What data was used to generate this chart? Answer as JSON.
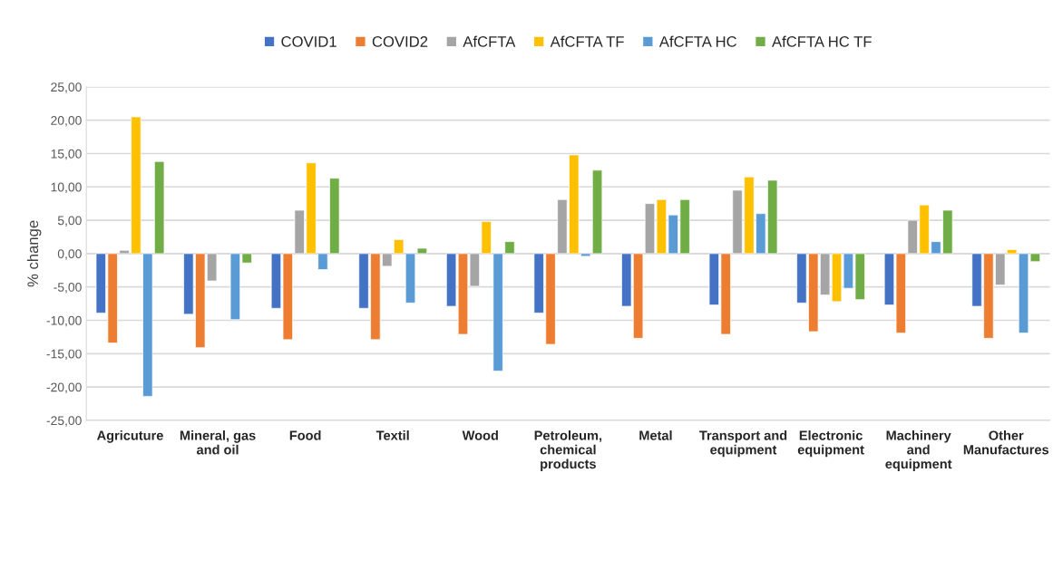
{
  "chart_data": {
    "type": "bar",
    "ylabel": "% change",
    "categories": [
      "Agricuture",
      "Mineral, gas\nand oil",
      "Food",
      "Textil",
      "Wood",
      "Petroleum,\nchemical\nproducts",
      "Metal",
      "Transport and\nequipment",
      "Electronic\nequipment",
      "Machinery\nand\nequipment",
      "Other\nManufactures"
    ],
    "series": [
      {
        "name": "COVID1",
        "color": "#4472c4",
        "values": [
          -8.9,
          -9.1,
          -8.2,
          -8.2,
          -7.9,
          -8.9,
          -7.9,
          -7.7,
          -7.4,
          -7.7,
          -7.9
        ]
      },
      {
        "name": "COVID2",
        "color": "#ed7d31",
        "values": [
          -13.4,
          -14.1,
          -12.9,
          -12.9,
          -12.1,
          -13.6,
          -12.7,
          -12.1,
          -11.7,
          -11.9,
          -12.7
        ]
      },
      {
        "name": "AfCFTA",
        "color": "#a5a5a5",
        "values": [
          0.5,
          -4.1,
          6.5,
          -1.9,
          -4.9,
          8.1,
          7.5,
          9.5,
          -6.2,
          5.0,
          -4.7
        ]
      },
      {
        "name": "AfCFTA TF",
        "color": "#ffc000",
        "values": [
          20.5,
          null,
          13.6,
          2.1,
          4.8,
          14.8,
          8.1,
          11.5,
          -7.2,
          7.3,
          0.6
        ]
      },
      {
        "name": "AfCFTA HC",
        "color": "#5b9bd5",
        "values": [
          -21.4,
          -9.9,
          -2.4,
          -7.4,
          -17.6,
          -0.4,
          5.8,
          6.0,
          -5.2,
          1.8,
          -11.9
        ]
      },
      {
        "name": "AfCFTA HC TF",
        "color": "#70ad47",
        "values": [
          13.8,
          -1.4,
          11.3,
          0.8,
          1.8,
          12.5,
          8.1,
          11.0,
          -6.9,
          6.5,
          -1.2
        ]
      }
    ],
    "ylim": [
      -25,
      25
    ],
    "yticks": [
      {
        "value": -25,
        "label": "-25,00"
      },
      {
        "value": -20,
        "label": "-20,00"
      },
      {
        "value": -15,
        "label": "-15,00"
      },
      {
        "value": -10,
        "label": "-10,00"
      },
      {
        "value": -5,
        "label": "-5,00"
      },
      {
        "value": 0,
        "label": "0,00"
      },
      {
        "value": 5,
        "label": "5,00"
      },
      {
        "value": 10,
        "label": "10,00"
      },
      {
        "value": 15,
        "label": "15,00"
      },
      {
        "value": 20,
        "label": "20,00"
      },
      {
        "value": 25,
        "label": "25,00"
      }
    ],
    "grid": "y",
    "legend": "top"
  }
}
